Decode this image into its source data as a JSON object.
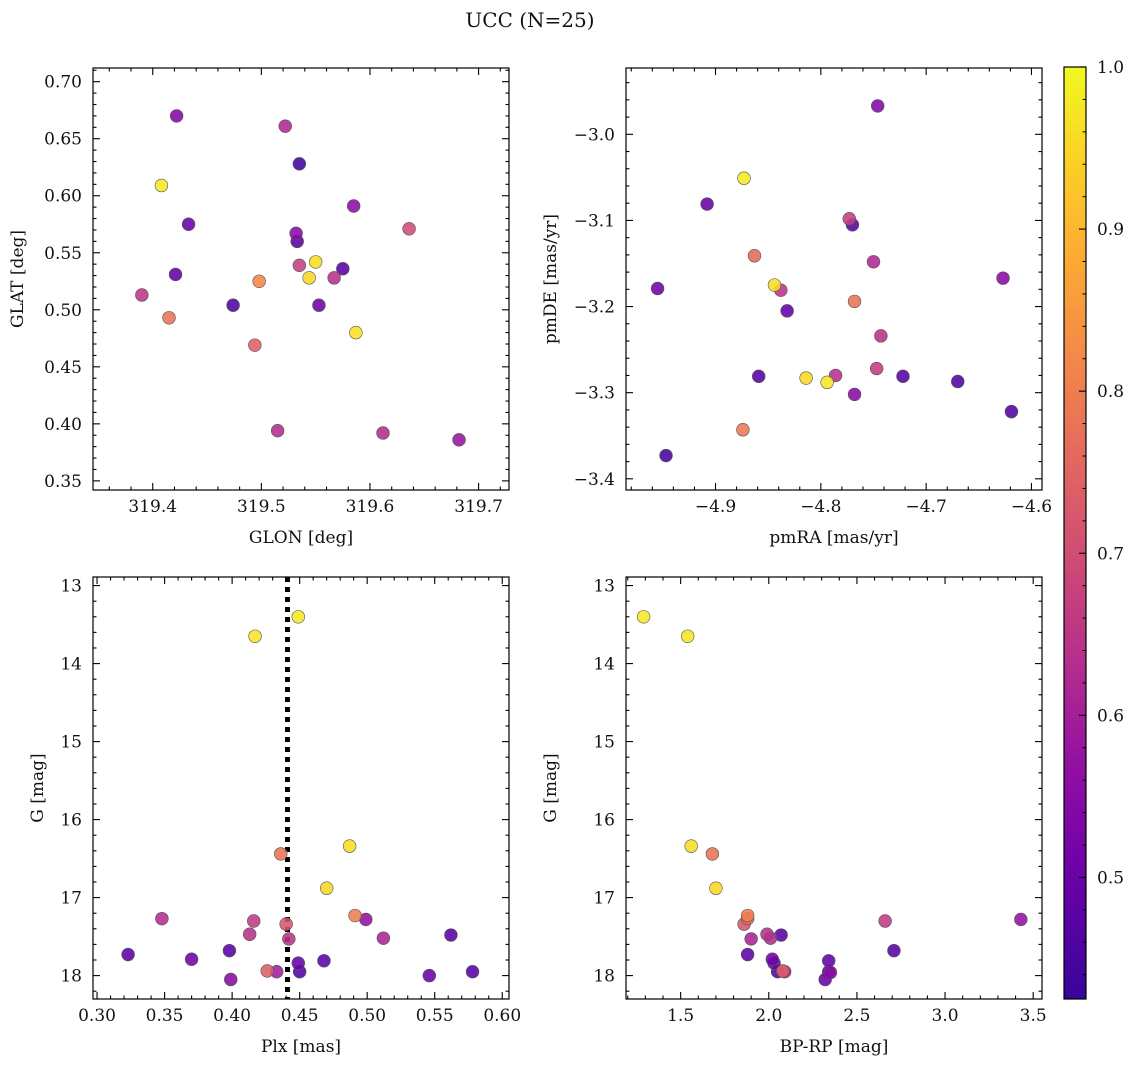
{
  "title": "UCC (N=25)",
  "colors": {
    "axes": "#000000",
    "marker_edge": "#555555",
    "vline": "#000000"
  },
  "colorbar": {
    "colormap": "plasma",
    "vmin": 0.425,
    "vmax": 1.0,
    "ticks": [
      0.5,
      0.6,
      0.7,
      0.8,
      0.9,
      1.0
    ],
    "tick_labels": [
      "0.5",
      "0.6",
      "0.7",
      "0.8",
      "0.9",
      "1.0"
    ]
  },
  "chart_data": [
    {
      "type": "scatter",
      "xlabel": "GLON [deg]",
      "ylabel": "GLAT [deg]",
      "xlim": [
        319.345,
        319.728
      ],
      "ylim": [
        0.342,
        0.712
      ],
      "invert_y": false,
      "grid": false,
      "xticks": [
        319.4,
        319.5,
        319.6,
        319.7
      ],
      "xtick_labels": [
        "319.4",
        "319.5",
        "319.6",
        "319.7"
      ],
      "yticks": [
        0.35,
        0.4,
        0.45,
        0.5,
        0.55,
        0.6,
        0.65,
        0.7
      ],
      "ytick_labels": [
        "0.35",
        "0.40",
        "0.45",
        "0.50",
        "0.55",
        "0.60",
        "0.65",
        "0.70"
      ],
      "points": [
        {
          "x": 319.422,
          "y": 0.67,
          "c": 0.54
        },
        {
          "x": 319.408,
          "y": 0.609,
          "c": 0.98
        },
        {
          "x": 319.433,
          "y": 0.575,
          "c": 0.5
        },
        {
          "x": 319.421,
          "y": 0.531,
          "c": 0.49
        },
        {
          "x": 319.39,
          "y": 0.513,
          "c": 0.65
        },
        {
          "x": 319.415,
          "y": 0.493,
          "c": 0.78
        },
        {
          "x": 319.474,
          "y": 0.504,
          "c": 0.46
        },
        {
          "x": 319.498,
          "y": 0.525,
          "c": 0.82
        },
        {
          "x": 319.494,
          "y": 0.469,
          "c": 0.74
        },
        {
          "x": 319.522,
          "y": 0.661,
          "c": 0.62
        },
        {
          "x": 319.535,
          "y": 0.628,
          "c": 0.44
        },
        {
          "x": 319.532,
          "y": 0.567,
          "c": 0.55
        },
        {
          "x": 319.533,
          "y": 0.56,
          "c": 0.47
        },
        {
          "x": 319.535,
          "y": 0.539,
          "c": 0.67
        },
        {
          "x": 319.55,
          "y": 0.542,
          "c": 0.96
        },
        {
          "x": 319.544,
          "y": 0.528,
          "c": 0.95
        },
        {
          "x": 319.567,
          "y": 0.528,
          "c": 0.64
        },
        {
          "x": 319.575,
          "y": 0.536,
          "c": 0.47
        },
        {
          "x": 319.553,
          "y": 0.504,
          "c": 0.51
        },
        {
          "x": 319.585,
          "y": 0.591,
          "c": 0.56
        },
        {
          "x": 319.587,
          "y": 0.48,
          "c": 0.97
        },
        {
          "x": 319.636,
          "y": 0.571,
          "c": 0.7
        },
        {
          "x": 319.515,
          "y": 0.394,
          "c": 0.63
        },
        {
          "x": 319.612,
          "y": 0.392,
          "c": 0.63
        },
        {
          "x": 319.682,
          "y": 0.386,
          "c": 0.58
        }
      ]
    },
    {
      "type": "scatter",
      "xlabel": "pmRA [mas/yr]",
      "ylabel": "pmDE [mas/yr]",
      "xlim": [
        -4.985,
        -4.59
      ],
      "ylim": [
        -3.413,
        -2.923
      ],
      "invert_y": false,
      "grid": false,
      "xticks": [
        -4.9,
        -4.8,
        -4.7,
        -4.6
      ],
      "xtick_labels": [
        "−4.9",
        "−4.8",
        "−4.7",
        "−4.6"
      ],
      "yticks": [
        -3.4,
        -3.3,
        -3.2,
        -3.1,
        -3.0
      ],
      "ytick_labels": [
        "−3.4",
        "−3.3",
        "−3.2",
        "−3.1",
        "−3.0"
      ],
      "points": [
        {
          "x": -4.746,
          "y": -2.967,
          "c": 0.54
        },
        {
          "x": -4.873,
          "y": -3.051,
          "c": 0.98
        },
        {
          "x": -4.908,
          "y": -3.081,
          "c": 0.5
        },
        {
          "x": -4.773,
          "y": -3.098,
          "c": 0.67
        },
        {
          "x": -4.77,
          "y": -3.105,
          "c": 0.47
        },
        {
          "x": -4.863,
          "y": -3.141,
          "c": 0.76
        },
        {
          "x": -4.75,
          "y": -3.148,
          "c": 0.62
        },
        {
          "x": -4.627,
          "y": -3.167,
          "c": 0.55
        },
        {
          "x": -4.955,
          "y": -3.179,
          "c": 0.51
        },
        {
          "x": -4.844,
          "y": -3.175,
          "c": 0.96
        },
        {
          "x": -4.838,
          "y": -3.181,
          "c": 0.65
        },
        {
          "x": -4.768,
          "y": -3.194,
          "c": 0.78
        },
        {
          "x": -4.832,
          "y": -3.205,
          "c": 0.49
        },
        {
          "x": -4.743,
          "y": -3.234,
          "c": 0.64
        },
        {
          "x": -4.747,
          "y": -3.272,
          "c": 0.66
        },
        {
          "x": -4.859,
          "y": -3.281,
          "c": 0.47
        },
        {
          "x": -4.814,
          "y": -3.283,
          "c": 0.95
        },
        {
          "x": -4.786,
          "y": -3.28,
          "c": 0.64
        },
        {
          "x": -4.722,
          "y": -3.281,
          "c": 0.47
        },
        {
          "x": -4.794,
          "y": -3.288,
          "c": 0.97
        },
        {
          "x": -4.67,
          "y": -3.287,
          "c": 0.46
        },
        {
          "x": -4.768,
          "y": -3.302,
          "c": 0.55
        },
        {
          "x": -4.619,
          "y": -3.322,
          "c": 0.46
        },
        {
          "x": -4.874,
          "y": -3.343,
          "c": 0.79
        },
        {
          "x": -4.947,
          "y": -3.373,
          "c": 0.44
        }
      ]
    },
    {
      "type": "scatter",
      "xlabel": "Plx [mas]",
      "ylabel": "G [mag]",
      "xlim": [
        0.297,
        0.605
      ],
      "ylim": [
        12.89,
        18.3
      ],
      "invert_y": true,
      "grid": false,
      "vline": 0.441,
      "xticks": [
        0.3,
        0.35,
        0.4,
        0.45,
        0.5,
        0.55,
        0.6
      ],
      "xtick_labels": [
        "0.30",
        "0.35",
        "0.40",
        "0.45",
        "0.50",
        "0.55",
        "0.60"
      ],
      "yticks": [
        13,
        14,
        15,
        16,
        17,
        18
      ],
      "ytick_labels": [
        "13",
        "14",
        "15",
        "16",
        "17",
        "18"
      ],
      "points": [
        {
          "x": 0.449,
          "y": 13.4,
          "c": 0.98
        },
        {
          "x": 0.417,
          "y": 13.65,
          "c": 0.97
        },
        {
          "x": 0.487,
          "y": 16.34,
          "c": 0.96
        },
        {
          "x": 0.436,
          "y": 16.44,
          "c": 0.78
        },
        {
          "x": 0.47,
          "y": 16.88,
          "c": 0.95
        },
        {
          "x": 0.348,
          "y": 17.27,
          "c": 0.63
        },
        {
          "x": 0.491,
          "y": 17.23,
          "c": 0.8
        },
        {
          "x": 0.499,
          "y": 17.28,
          "c": 0.57
        },
        {
          "x": 0.416,
          "y": 17.3,
          "c": 0.66
        },
        {
          "x": 0.44,
          "y": 17.34,
          "c": 0.72
        },
        {
          "x": 0.413,
          "y": 17.47,
          "c": 0.64
        },
        {
          "x": 0.442,
          "y": 17.53,
          "c": 0.65
        },
        {
          "x": 0.512,
          "y": 17.52,
          "c": 0.61
        },
        {
          "x": 0.562,
          "y": 17.48,
          "c": 0.47
        },
        {
          "x": 0.323,
          "y": 17.73,
          "c": 0.48
        },
        {
          "x": 0.37,
          "y": 17.79,
          "c": 0.51
        },
        {
          "x": 0.398,
          "y": 17.68,
          "c": 0.47
        },
        {
          "x": 0.449,
          "y": 17.84,
          "c": 0.5
        },
        {
          "x": 0.468,
          "y": 17.81,
          "c": 0.48
        },
        {
          "x": 0.426,
          "y": 17.94,
          "c": 0.74
        },
        {
          "x": 0.433,
          "y": 17.95,
          "c": 0.6
        },
        {
          "x": 0.45,
          "y": 17.95,
          "c": 0.46
        },
        {
          "x": 0.578,
          "y": 17.95,
          "c": 0.47
        },
        {
          "x": 0.399,
          "y": 18.05,
          "c": 0.55
        },
        {
          "x": 0.546,
          "y": 18.0,
          "c": 0.5
        }
      ]
    },
    {
      "type": "scatter",
      "xlabel": "BP-RP [mag]",
      "ylabel": "G [mag]",
      "xlim": [
        1.19,
        3.55
      ],
      "ylim": [
        12.89,
        18.3
      ],
      "invert_y": true,
      "grid": false,
      "xticks": [
        1.5,
        2.0,
        2.5,
        3.0,
        3.5
      ],
      "xtick_labels": [
        "1.5",
        "2.0",
        "2.5",
        "3.0",
        "3.5"
      ],
      "yticks": [
        13,
        14,
        15,
        16,
        17,
        18
      ],
      "ytick_labels": [
        "13",
        "14",
        "15",
        "16",
        "17",
        "18"
      ],
      "points": [
        {
          "x": 1.29,
          "y": 13.4,
          "c": 0.98
        },
        {
          "x": 1.54,
          "y": 13.65,
          "c": 0.97
        },
        {
          "x": 1.56,
          "y": 16.34,
          "c": 0.96
        },
        {
          "x": 1.68,
          "y": 16.44,
          "c": 0.78
        },
        {
          "x": 1.7,
          "y": 16.88,
          "c": 0.95
        },
        {
          "x": 1.88,
          "y": 17.23,
          "c": 0.8
        },
        {
          "x": 1.88,
          "y": 17.27,
          "c": 0.75
        },
        {
          "x": 1.86,
          "y": 17.34,
          "c": 0.72
        },
        {
          "x": 1.99,
          "y": 17.47,
          "c": 0.64
        },
        {
          "x": 2.07,
          "y": 17.48,
          "c": 0.47
        },
        {
          "x": 1.9,
          "y": 17.53,
          "c": 0.61
        },
        {
          "x": 2.01,
          "y": 17.52,
          "c": 0.63
        },
        {
          "x": 2.66,
          "y": 17.3,
          "c": 0.66
        },
        {
          "x": 3.43,
          "y": 17.28,
          "c": 0.57
        },
        {
          "x": 2.71,
          "y": 17.68,
          "c": 0.47
        },
        {
          "x": 1.88,
          "y": 17.73,
          "c": 0.48
        },
        {
          "x": 2.02,
          "y": 17.79,
          "c": 0.51
        },
        {
          "x": 2.03,
          "y": 17.84,
          "c": 0.5
        },
        {
          "x": 2.34,
          "y": 17.81,
          "c": 0.48
        },
        {
          "x": 2.05,
          "y": 17.95,
          "c": 0.46
        },
        {
          "x": 2.08,
          "y": 17.94,
          "c": 0.74
        },
        {
          "x": 2.09,
          "y": 17.95,
          "c": 0.6
        },
        {
          "x": 2.34,
          "y": 17.95,
          "c": 0.47
        },
        {
          "x": 2.35,
          "y": 17.96,
          "c": 0.55
        },
        {
          "x": 2.32,
          "y": 18.05,
          "c": 0.5
        }
      ]
    }
  ]
}
